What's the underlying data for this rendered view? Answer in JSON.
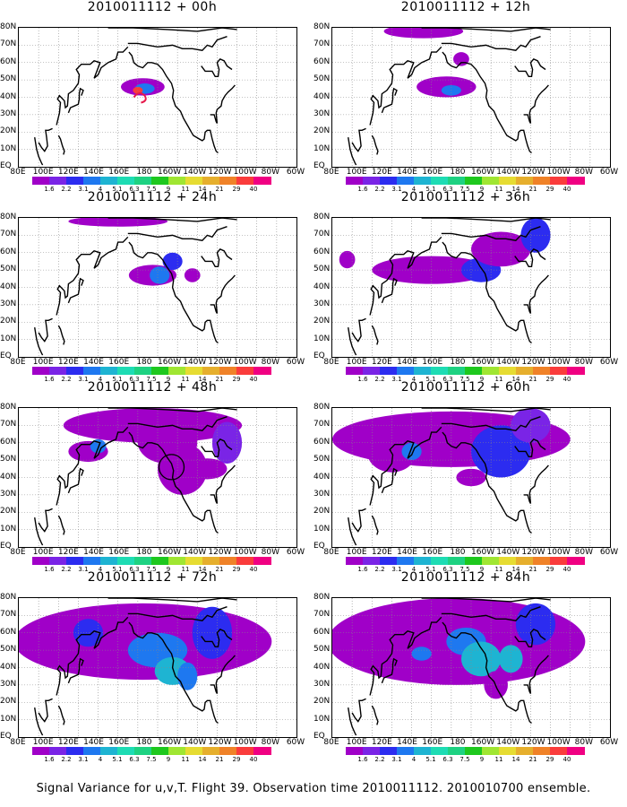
{
  "panels": [
    {
      "title": "2010011112 + 00h",
      "level": 0
    },
    {
      "title": "2010011112 + 12h",
      "level": 1
    },
    {
      "title": "2010011112 + 24h",
      "level": 2
    },
    {
      "title": "2010011112 + 36h",
      "level": 3
    },
    {
      "title": "2010011112 + 48h",
      "level": 4
    },
    {
      "title": "2010011112 + 60h",
      "level": 5
    },
    {
      "title": "2010011112 + 72h",
      "level": 6
    },
    {
      "title": "2010011112 + 84h",
      "level": 7
    }
  ],
  "lat_labels": [
    "80N",
    "70N",
    "60N",
    "50N",
    "40N",
    "30N",
    "20N",
    "10N",
    "EQ"
  ],
  "lon_labels": [
    "80E",
    "100E",
    "120E",
    "140E",
    "160E",
    "180",
    "160W",
    "140W",
    "120W",
    "100W",
    "80W",
    "60W"
  ],
  "colorbar": {
    "labels": [
      "1.6",
      "2.2",
      "3.1",
      "4",
      "5.1",
      "6.3",
      "7.5",
      "9",
      "11",
      "14",
      "21",
      "29",
      "40"
    ],
    "colors": [
      "#a000c8",
      "#7a24e6",
      "#2c2cf0",
      "#1e78f0",
      "#1eb4d2",
      "#1edcb4",
      "#1ed282",
      "#1ec81e",
      "#a0e632",
      "#e6dc32",
      "#e6af2d",
      "#f08228",
      "#fa3c3c",
      "#f00082"
    ]
  },
  "caption": "Signal Variance for u,v,T. Flight 39. Observation time 2010011112. 2010010700 ensemble."
}
